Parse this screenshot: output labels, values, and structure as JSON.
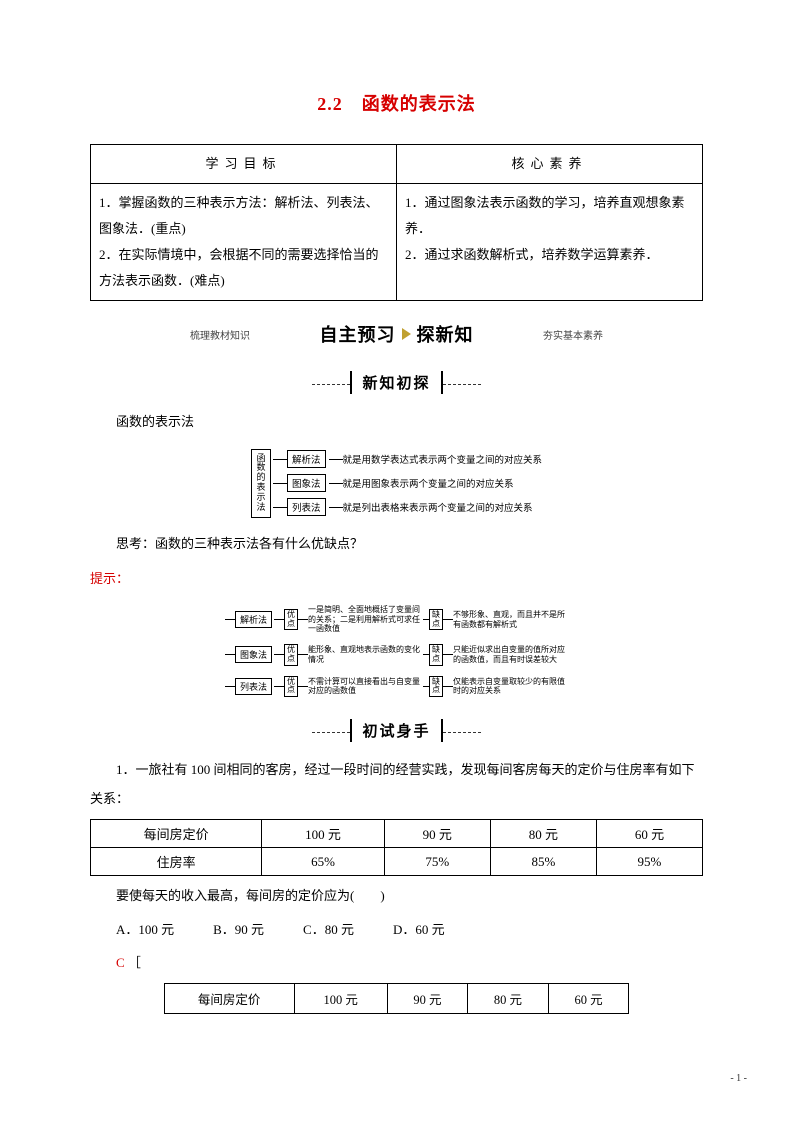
{
  "title": "2.2　函数的表示法",
  "top_table": {
    "headers": [
      "学习目标",
      "核心素养"
    ],
    "left": "1．掌握函数的三种表示方法：解析法、列表法、图象法．(重点)\n2．在实际情境中，会根据不同的需要选择恰当的方法表示函数．(难点)",
    "right": "1．通过图象法表示函数的学习，培养直观想象素养．\n2．通过求函数解析式，培养数学运算素养．"
  },
  "banner": {
    "left_note": "梳理教材知识",
    "main_left": "自主预习",
    "main_right": "探新知",
    "right_note": "夯实基本素养"
  },
  "section_titles": {
    "xinzhi": "新知初探",
    "chushi": "初试身手"
  },
  "intro_heading": "函数的表示法",
  "diagram1": {
    "left_label": "函数的表示法",
    "rows": [
      {
        "box": "解析法",
        "text": "就是用数学表达式表示两个变量之间的对应关系"
      },
      {
        "box": "图象法",
        "text": "就是用图象表示两个变量之间的对应关系"
      },
      {
        "box": "列表法",
        "text": "就是列出表格来表示两个变量之间的对应关系"
      }
    ]
  },
  "think": "思考：函数的三种表示法各有什么优缺点？",
  "hint_label": "提示：",
  "diagram2": {
    "rows": [
      {
        "method": "解析法",
        "adv": "一是简明、全面地概括了变量间的关系；二是利用解析式可求任一函数值",
        "dis": "不够形象、直观，而且并不是所有函数都有解析式"
      },
      {
        "method": "图象法",
        "adv": "能形象、直观地表示函数的变化情况",
        "dis": "只能近似求出自变量的值所对应的函数值，而且有时误差较大"
      },
      {
        "method": "列表法",
        "adv": "不需计算可以直接看出与自变量对应的函数值",
        "dis": "仅能表示自变量取较少的有限值时的对应关系"
      }
    ]
  },
  "q1": {
    "stem1": "1．一旅社有 100 间相同的客房，经过一段时间的经营实践，发现每间客房每天的定价与住房率有如下关系：",
    "table": {
      "r1": [
        "每间房定价",
        "100 元",
        "90 元",
        "80 元",
        "60 元"
      ],
      "r2": [
        "住房率",
        "65%",
        "75%",
        "85%",
        "95%"
      ]
    },
    "stem2": "要使每天的收入最高，每间房的定价应为(　　)",
    "choices": "A．100 元　　　B．90 元　　　C．80 元　　　D．60 元",
    "answer": "C",
    "bracket_open": "［",
    "inner_table": {
      "r1": [
        "每间房定价",
        "100 元",
        "90 元",
        "80 元",
        "60 元"
      ]
    }
  },
  "page_number": "- 1 -",
  "colors": {
    "title_color": "#d60000",
    "border_color": "#000000",
    "accent_play": "#c0a030"
  }
}
